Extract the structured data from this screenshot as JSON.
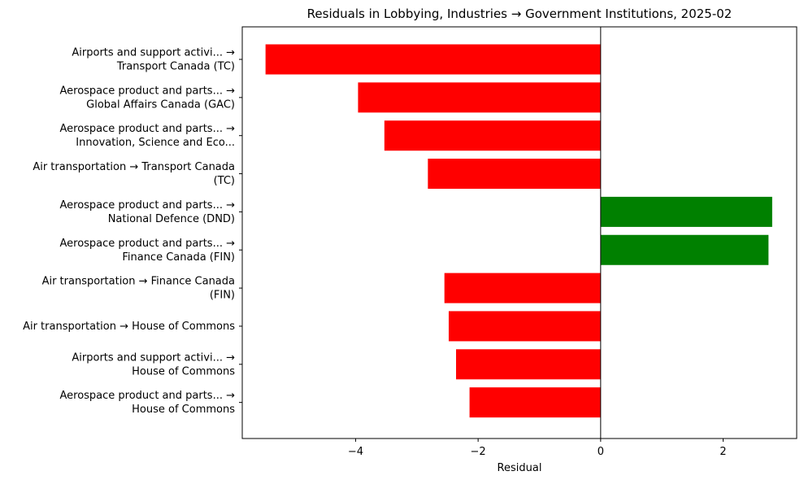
{
  "chart_data": {
    "type": "bar",
    "orientation": "horizontal",
    "title": "Residuals in Lobbying, Industries → Government Institutions, 2025-02",
    "xlabel": "Residual",
    "ylabel": "",
    "xlim": [
      -5.85,
      3.2
    ],
    "xticks": [
      -4,
      -2,
      0,
      2
    ],
    "xtick_labels": [
      "−4",
      "−2",
      "0",
      "2"
    ],
    "grid": false,
    "zero_line": true,
    "colors": {
      "positive": "#008000",
      "negative": "#ff0000"
    },
    "categories": [
      [
        "Airports and support activi... →",
        "Transport Canada (TC)"
      ],
      [
        "Aerospace product and parts... →",
        "Global Affairs Canada (GAC)"
      ],
      [
        "Aerospace product and parts... →",
        "Innovation, Science and Eco..."
      ],
      [
        "Air transportation → Transport Canada",
        "(TC)"
      ],
      [
        "Aerospace product and parts... →",
        "National Defence (DND)"
      ],
      [
        "Aerospace product and parts... →",
        "Finance Canada (FIN)"
      ],
      [
        "Air transportation → Finance Canada",
        "(FIN)"
      ],
      [
        "Air transportation → House of Commons"
      ],
      [
        "Airports and support activi... →",
        "House of Commons"
      ],
      [
        "Aerospace product and parts... →",
        "House of Commons"
      ]
    ],
    "values": [
      -5.47,
      -3.96,
      -3.53,
      -2.82,
      2.8,
      2.74,
      -2.55,
      -2.48,
      -2.36,
      -2.14
    ]
  }
}
